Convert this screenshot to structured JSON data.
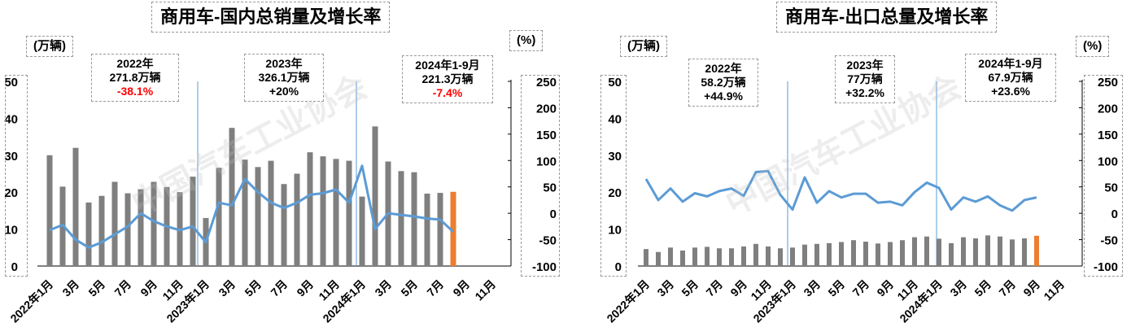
{
  "watermark": "中国汽车工业协会",
  "colors": {
    "bar": "#7f7f7f",
    "highlight": "#ed7d31",
    "line": "#5b9bd5",
    "negative": "#ff0000"
  },
  "chart_data": [
    {
      "type": "bar",
      "title": "商用车-国内总销量及增长率",
      "y_unit": "(万辆)",
      "y2_unit": "(%)",
      "ylim": [
        0,
        50
      ],
      "y_ticks": [
        "0",
        "10",
        "20",
        "30",
        "40",
        "50"
      ],
      "y2lim": [
        -100,
        250
      ],
      "y2_ticks": [
        "-100",
        "-50",
        "0",
        "50",
        "100",
        "150",
        "200",
        "250"
      ],
      "x_tick_labels": [
        "2022年1月",
        "3月",
        "5月",
        "7月",
        "9月",
        "11月",
        "2023年1月",
        "3月",
        "5月",
        "7月",
        "9月",
        "11月",
        "2024年1月",
        "3月",
        "5月",
        "7月",
        "9月",
        "11月"
      ],
      "bars": [
        30,
        21.5,
        32,
        17.2,
        19,
        22.8,
        19.7,
        20.8,
        22.8,
        21.4,
        20,
        24.2,
        13,
        26.6,
        37.4,
        28.8,
        26.8,
        28.5,
        22.2,
        25,
        30.8,
        29.7,
        29,
        28.5,
        18.8,
        37.8,
        28.3,
        25.7,
        25.4,
        19.6,
        19.8,
        20.1
      ],
      "growth": [
        -32,
        -22,
        -50,
        -65,
        -55,
        -40,
        -25,
        0,
        -15,
        -25,
        -32,
        -25,
        -55,
        20,
        15,
        65,
        40,
        20,
        10,
        20,
        35,
        38,
        45,
        20,
        90,
        -30,
        0,
        -3,
        -6,
        -10,
        -12,
        -35
      ],
      "highlight_index": 31,
      "annotations": [
        {
          "line1": "2022年",
          "line2": "271.8万辆",
          "line3": "-38.1%",
          "negative": true
        },
        {
          "line1": "2023年",
          "line2": "326.1万辆",
          "line3": "+20%",
          "negative": false
        },
        {
          "line1": "2024年1-9月",
          "line2": "221.3万辆",
          "line3": "-7.4%",
          "negative": true
        }
      ]
    },
    {
      "type": "bar",
      "title": "商用车-出口总量及增长率",
      "y_unit": "(万辆)",
      "y2_unit": "(%)",
      "ylim": [
        0,
        50
      ],
      "y_ticks": [
        "0",
        "10",
        "20",
        "30",
        "40",
        "50"
      ],
      "y2lim": [
        -100,
        250
      ],
      "y2_ticks": [
        "-100",
        "-50",
        "0",
        "50",
        "100",
        "150",
        "200",
        "250"
      ],
      "x_tick_labels": [
        "2022年1月",
        "3月",
        "5月",
        "7月",
        "9月",
        "11月",
        "2023年1月",
        "3月",
        "5月",
        "7月",
        "9月",
        "11月",
        "2024年1月",
        "3月",
        "5月",
        "7月",
        "9月",
        "11月"
      ],
      "bars": [
        4.6,
        3.8,
        5,
        4.2,
        5,
        5.2,
        4.8,
        4.8,
        5.3,
        6,
        5.3,
        4.8,
        5,
        5.8,
        6,
        6.2,
        6.5,
        7,
        6.6,
        6.1,
        6.5,
        7,
        7.8,
        8,
        7.4,
        6.2,
        7.8,
        7.5,
        8.3,
        8,
        7.2,
        7.5,
        8.2
      ],
      "growth": [
        65,
        25,
        47,
        22,
        38,
        32,
        42,
        47,
        33,
        78,
        80,
        35,
        7,
        68,
        20,
        42,
        30,
        37,
        37,
        20,
        22,
        15,
        40,
        58,
        48,
        7,
        30,
        22,
        32,
        15,
        5,
        25,
        30
      ],
      "highlight_index": 32,
      "annotations": [
        {
          "line1": "2022年",
          "line2": "58.2万辆",
          "line3": "+44.9%",
          "negative": false
        },
        {
          "line1": "2023年",
          "line2": "77万辆",
          "line3": "+32.2%",
          "negative": false
        },
        {
          "line1": "2024年1-9月",
          "line2": "67.9万辆",
          "line3": "+23.6%",
          "negative": false
        }
      ]
    }
  ]
}
